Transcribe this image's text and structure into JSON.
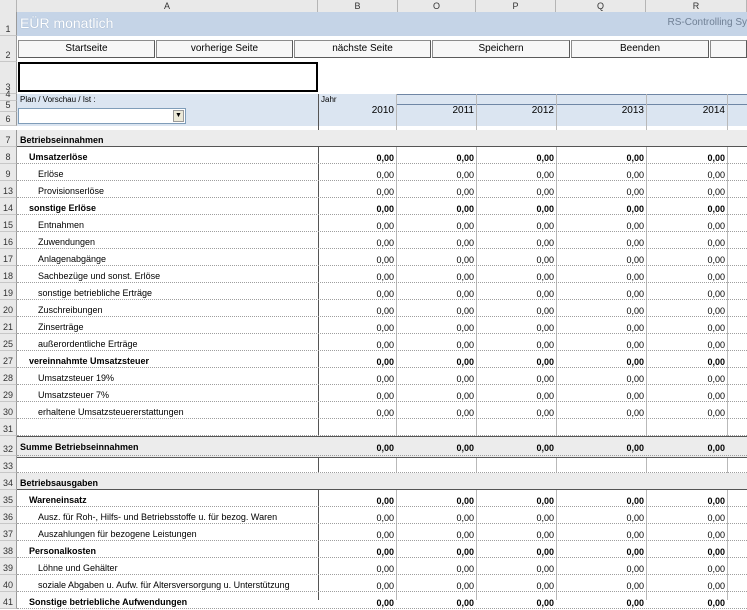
{
  "columns": [
    "A",
    "B",
    "O",
    "P",
    "Q",
    "R"
  ],
  "title": "EÜR monatlich",
  "subtitle": "RS-Controlling Sy",
  "buttons": [
    "Startseite",
    "vorherige Seite",
    "nächste Seite",
    "Speichern",
    "Beenden"
  ],
  "plan_label": "Plan / Vorschau / Ist :",
  "jahr_label": "Jahr",
  "years": [
    "2010",
    "2011",
    "2012",
    "2013",
    "2014"
  ],
  "dropdown_value": "",
  "header_rows": [
    "1",
    "2",
    "3",
    "4",
    "5",
    "6"
  ],
  "rows": [
    {
      "n": "7",
      "label": "Betriebseinnahmen",
      "level": 0,
      "bold": true,
      "values": null
    },
    {
      "n": "8",
      "label": "Umsatzerlöse",
      "level": 1,
      "bold": true,
      "values": [
        "0,00",
        "0,00",
        "0,00",
        "0,00",
        "0,00"
      ]
    },
    {
      "n": "9",
      "label": "Erlöse",
      "level": 2,
      "bold": false,
      "values": [
        "0,00",
        "0,00",
        "0,00",
        "0,00",
        "0,00"
      ]
    },
    {
      "n": "13",
      "label": "Provisionserlöse",
      "level": 2,
      "bold": false,
      "values": [
        "0,00",
        "0,00",
        "0,00",
        "0,00",
        "0,00"
      ]
    },
    {
      "n": "14",
      "label": "sonstige Erlöse",
      "level": 1,
      "bold": true,
      "values": [
        "0,00",
        "0,00",
        "0,00",
        "0,00",
        "0,00"
      ]
    },
    {
      "n": "15",
      "label": "Entnahmen",
      "level": 2,
      "bold": false,
      "values": [
        "0,00",
        "0,00",
        "0,00",
        "0,00",
        "0,00"
      ]
    },
    {
      "n": "16",
      "label": "Zuwendungen",
      "level": 2,
      "bold": false,
      "values": [
        "0,00",
        "0,00",
        "0,00",
        "0,00",
        "0,00"
      ]
    },
    {
      "n": "17",
      "label": "Anlagenabgänge",
      "level": 2,
      "bold": false,
      "values": [
        "0,00",
        "0,00",
        "0,00",
        "0,00",
        "0,00"
      ]
    },
    {
      "n": "18",
      "label": "Sachbezüge und sonst. Erlöse",
      "level": 2,
      "bold": false,
      "values": [
        "0,00",
        "0,00",
        "0,00",
        "0,00",
        "0,00"
      ]
    },
    {
      "n": "19",
      "label": "sonstige betriebliche Erträge",
      "level": 2,
      "bold": false,
      "values": [
        "0,00",
        "0,00",
        "0,00",
        "0,00",
        "0,00"
      ]
    },
    {
      "n": "20",
      "label": "Zuschreibungen",
      "level": 2,
      "bold": false,
      "values": [
        "0,00",
        "0,00",
        "0,00",
        "0,00",
        "0,00"
      ]
    },
    {
      "n": "21",
      "label": "Zinserträge",
      "level": 2,
      "bold": false,
      "values": [
        "0,00",
        "0,00",
        "0,00",
        "0,00",
        "0,00"
      ]
    },
    {
      "n": "25",
      "label": "außerordentliche Erträge",
      "level": 2,
      "bold": false,
      "values": [
        "0,00",
        "0,00",
        "0,00",
        "0,00",
        "0,00"
      ]
    },
    {
      "n": "27",
      "label": "vereinnahmte Umsatzsteuer",
      "level": 1,
      "bold": true,
      "values": [
        "0,00",
        "0,00",
        "0,00",
        "0,00",
        "0,00"
      ]
    },
    {
      "n": "28",
      "label": "Umsatzsteuer 19%",
      "level": 2,
      "bold": false,
      "values": [
        "0,00",
        "0,00",
        "0,00",
        "0,00",
        "0,00"
      ]
    },
    {
      "n": "29",
      "label": "Umsatzsteuer 7%",
      "level": 2,
      "bold": false,
      "values": [
        "0,00",
        "0,00",
        "0,00",
        "0,00",
        "0,00"
      ]
    },
    {
      "n": "30",
      "label": "erhaltene Umsatzsteuererstattungen",
      "level": 2,
      "bold": false,
      "values": [
        "0,00",
        "0,00",
        "0,00",
        "0,00",
        "0,00"
      ]
    },
    {
      "n": "31",
      "label": "",
      "level": 0,
      "bold": false,
      "values": null
    },
    {
      "n": "32",
      "label": "Summe Betriebseinnahmen",
      "level": 0,
      "bold": true,
      "values": [
        "0,00",
        "0,00",
        "0,00",
        "0,00",
        "0,00"
      ],
      "tall": true
    },
    {
      "n": "33",
      "label": "",
      "level": 0,
      "bold": false,
      "values": null
    },
    {
      "n": "34",
      "label": "Betriebsausgaben",
      "level": 0,
      "bold": true,
      "values": null
    },
    {
      "n": "35",
      "label": "Wareneinsatz",
      "level": 1,
      "bold": true,
      "values": [
        "0,00",
        "0,00",
        "0,00",
        "0,00",
        "0,00"
      ]
    },
    {
      "n": "36",
      "label": "Ausz. für Roh-, Hilfs- und Betriebsstoffe u. für bezog. Waren",
      "level": 2,
      "bold": false,
      "values": [
        "0,00",
        "0,00",
        "0,00",
        "0,00",
        "0,00"
      ]
    },
    {
      "n": "37",
      "label": "Auszahlungen für bezogene Leistungen",
      "level": 2,
      "bold": false,
      "values": [
        "0,00",
        "0,00",
        "0,00",
        "0,00",
        "0,00"
      ]
    },
    {
      "n": "38",
      "label": "Personalkosten",
      "level": 1,
      "bold": true,
      "values": [
        "0,00",
        "0,00",
        "0,00",
        "0,00",
        "0,00"
      ]
    },
    {
      "n": "39",
      "label": "Löhne und Gehälter",
      "level": 2,
      "bold": false,
      "values": [
        "0,00",
        "0,00",
        "0,00",
        "0,00",
        "0,00"
      ]
    },
    {
      "n": "40",
      "label": "soziale Abgaben u. Aufw. für Altersversorgung u. Unterstützung",
      "level": 2,
      "bold": false,
      "values": [
        "0,00",
        "0,00",
        "0,00",
        "0,00",
        "0,00"
      ]
    },
    {
      "n": "41",
      "label": "Sonstige betriebliche Aufwendungen",
      "level": 1,
      "bold": true,
      "values": [
        "0,00",
        "0,00",
        "0,00",
        "0,00",
        "0,00"
      ]
    }
  ]
}
